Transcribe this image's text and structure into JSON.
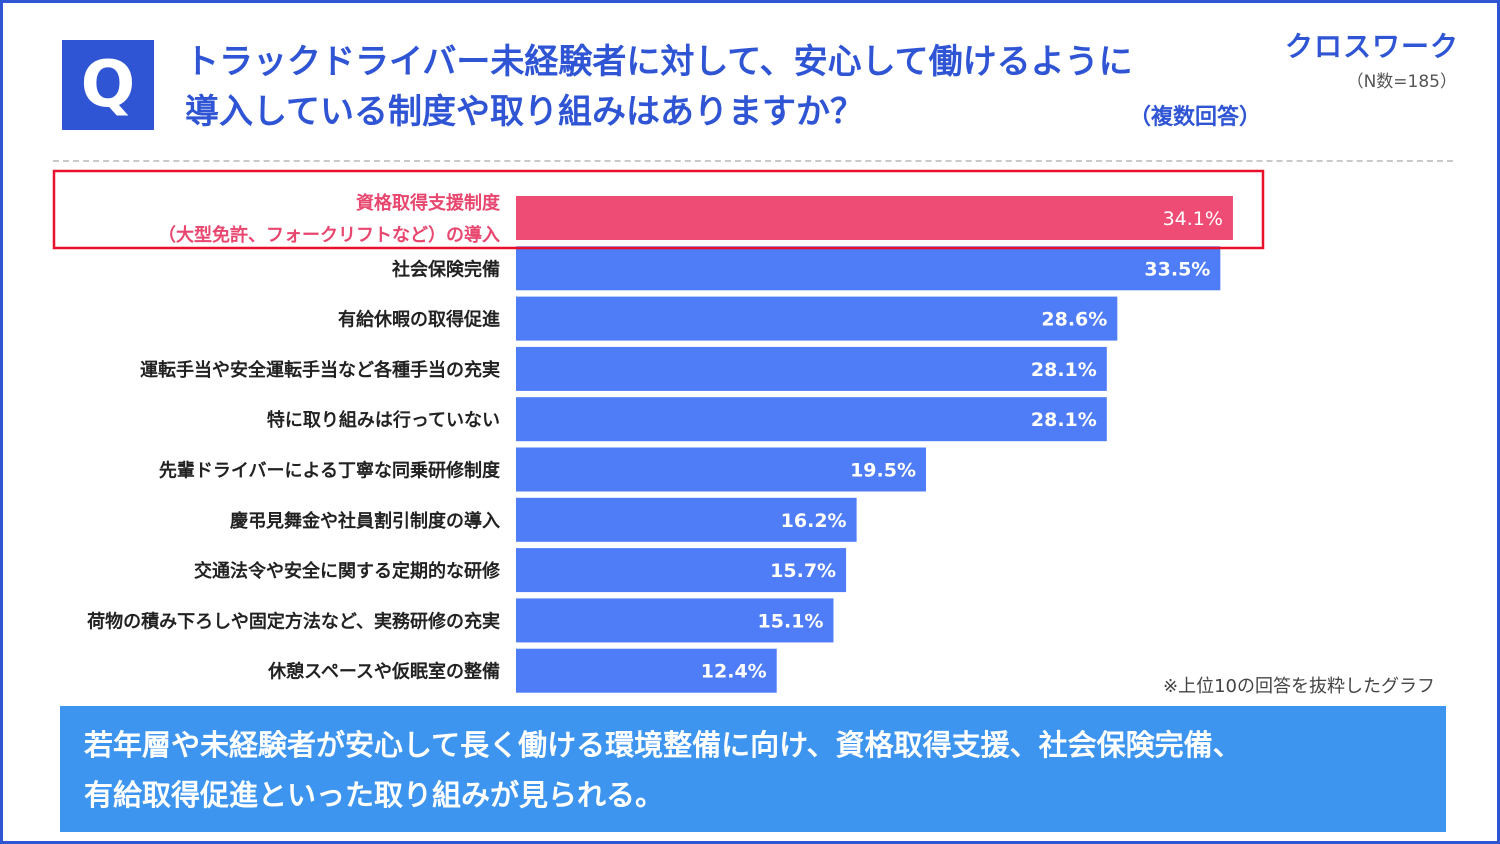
{
  "header": {
    "q_mark": "Q",
    "title_lines": [
      "トラックドライバー未経験者に対して、安心して働けるように",
      "導入している制度や取り組みはありますか？"
    ],
    "multi_answer": "（複数回答）",
    "logo": "クロスワーク",
    "sample_size": "（N数=185）"
  },
  "chart_data": {
    "type": "bar",
    "orientation": "horizontal",
    "categories": [
      [
        "資格取得支援制度",
        "（大型免許、フォークリフトなど）の導入"
      ],
      [
        "社会保険完備"
      ],
      [
        "有給休暇の取得促進"
      ],
      [
        "運転手当や安全運転手当など各種手当の充実"
      ],
      [
        "特に取り組みは行っていない"
      ],
      [
        "先輩ドライバーによる丁寧な同乗研修制度"
      ],
      [
        "慶弔見舞金や社員割引制度の導入"
      ],
      [
        "交通法令や安全に関する定期的な研修"
      ],
      [
        "荷物の積み下ろしや固定方法など、実務研修の充実"
      ],
      [
        "休憩スペースや仮眠室の整備"
      ]
    ],
    "values": [
      34.1,
      33.5,
      28.6,
      28.1,
      28.1,
      19.5,
      16.2,
      15.7,
      15.1,
      12.4
    ],
    "value_labels": [
      "34.1%",
      "33.5%",
      "28.6%",
      "28.1%",
      "28.1%",
      "19.5%",
      "16.2%",
      "15.7%",
      "15.1%",
      "12.4%"
    ],
    "unit": "%",
    "highlight_index": 0,
    "xlim": [
      0,
      40
    ],
    "grid": false,
    "colors": {
      "bar": "#4f7cf7",
      "highlight": "#ee4c74",
      "highlight_border": "#e8102a"
    }
  },
  "footnote": "※上位10の回答を抜粋したグラフ",
  "summary_lines": [
    "若年層や未経験者が安心して長く働ける環境整備に向け、資格取得支援、社会保険完備、",
    "有給取得促進といった取り組みが見られる。"
  ]
}
